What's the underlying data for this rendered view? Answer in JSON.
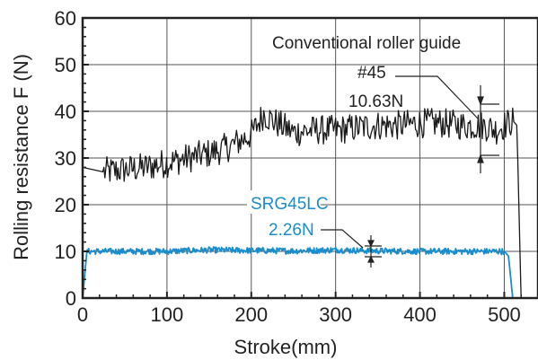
{
  "chart_data": {
    "type": "line",
    "title": "",
    "xlabel": "Stroke(mm)",
    "ylabel": "Rolling resistance F (N)",
    "xlim": [
      0,
      540
    ],
    "ylim": [
      0,
      60
    ],
    "x_ticks": [
      "0",
      "100",
      "200",
      "300",
      "400",
      "500"
    ],
    "y_ticks": [
      "0",
      "10",
      "20",
      "30",
      "40",
      "50",
      "60"
    ],
    "grid": true,
    "series": [
      {
        "name": "Conventional roller guide",
        "color": "#1a1a1a",
        "x": [
          0,
          25,
          50,
          75,
          100,
          125,
          150,
          175,
          200,
          215,
          225,
          250,
          275,
          300,
          325,
          350,
          375,
          400,
          425,
          450,
          475,
          490,
          500,
          510,
          515,
          520
        ],
        "values": [
          28,
          27,
          27.5,
          28,
          29,
          30,
          31,
          32.5,
          35,
          39.5,
          38,
          35.5,
          36,
          36,
          36.5,
          37,
          37,
          37.5,
          37.5,
          37,
          37,
          36,
          37,
          38,
          37,
          0
        ],
        "annotation": [
          "#45",
          "10.63N"
        ]
      },
      {
        "name": "SRG45LC",
        "color": "#1b8ccc",
        "x": [
          0,
          5,
          50,
          100,
          150,
          200,
          250,
          300,
          350,
          400,
          450,
          500,
          505,
          510
        ],
        "values": [
          0,
          10,
          10,
          10,
          10.3,
          10.2,
          10.1,
          10.3,
          10.1,
          10,
          10,
          10,
          9,
          0
        ],
        "annotation": [
          "SRG45LC",
          "2.26N"
        ]
      }
    ]
  }
}
